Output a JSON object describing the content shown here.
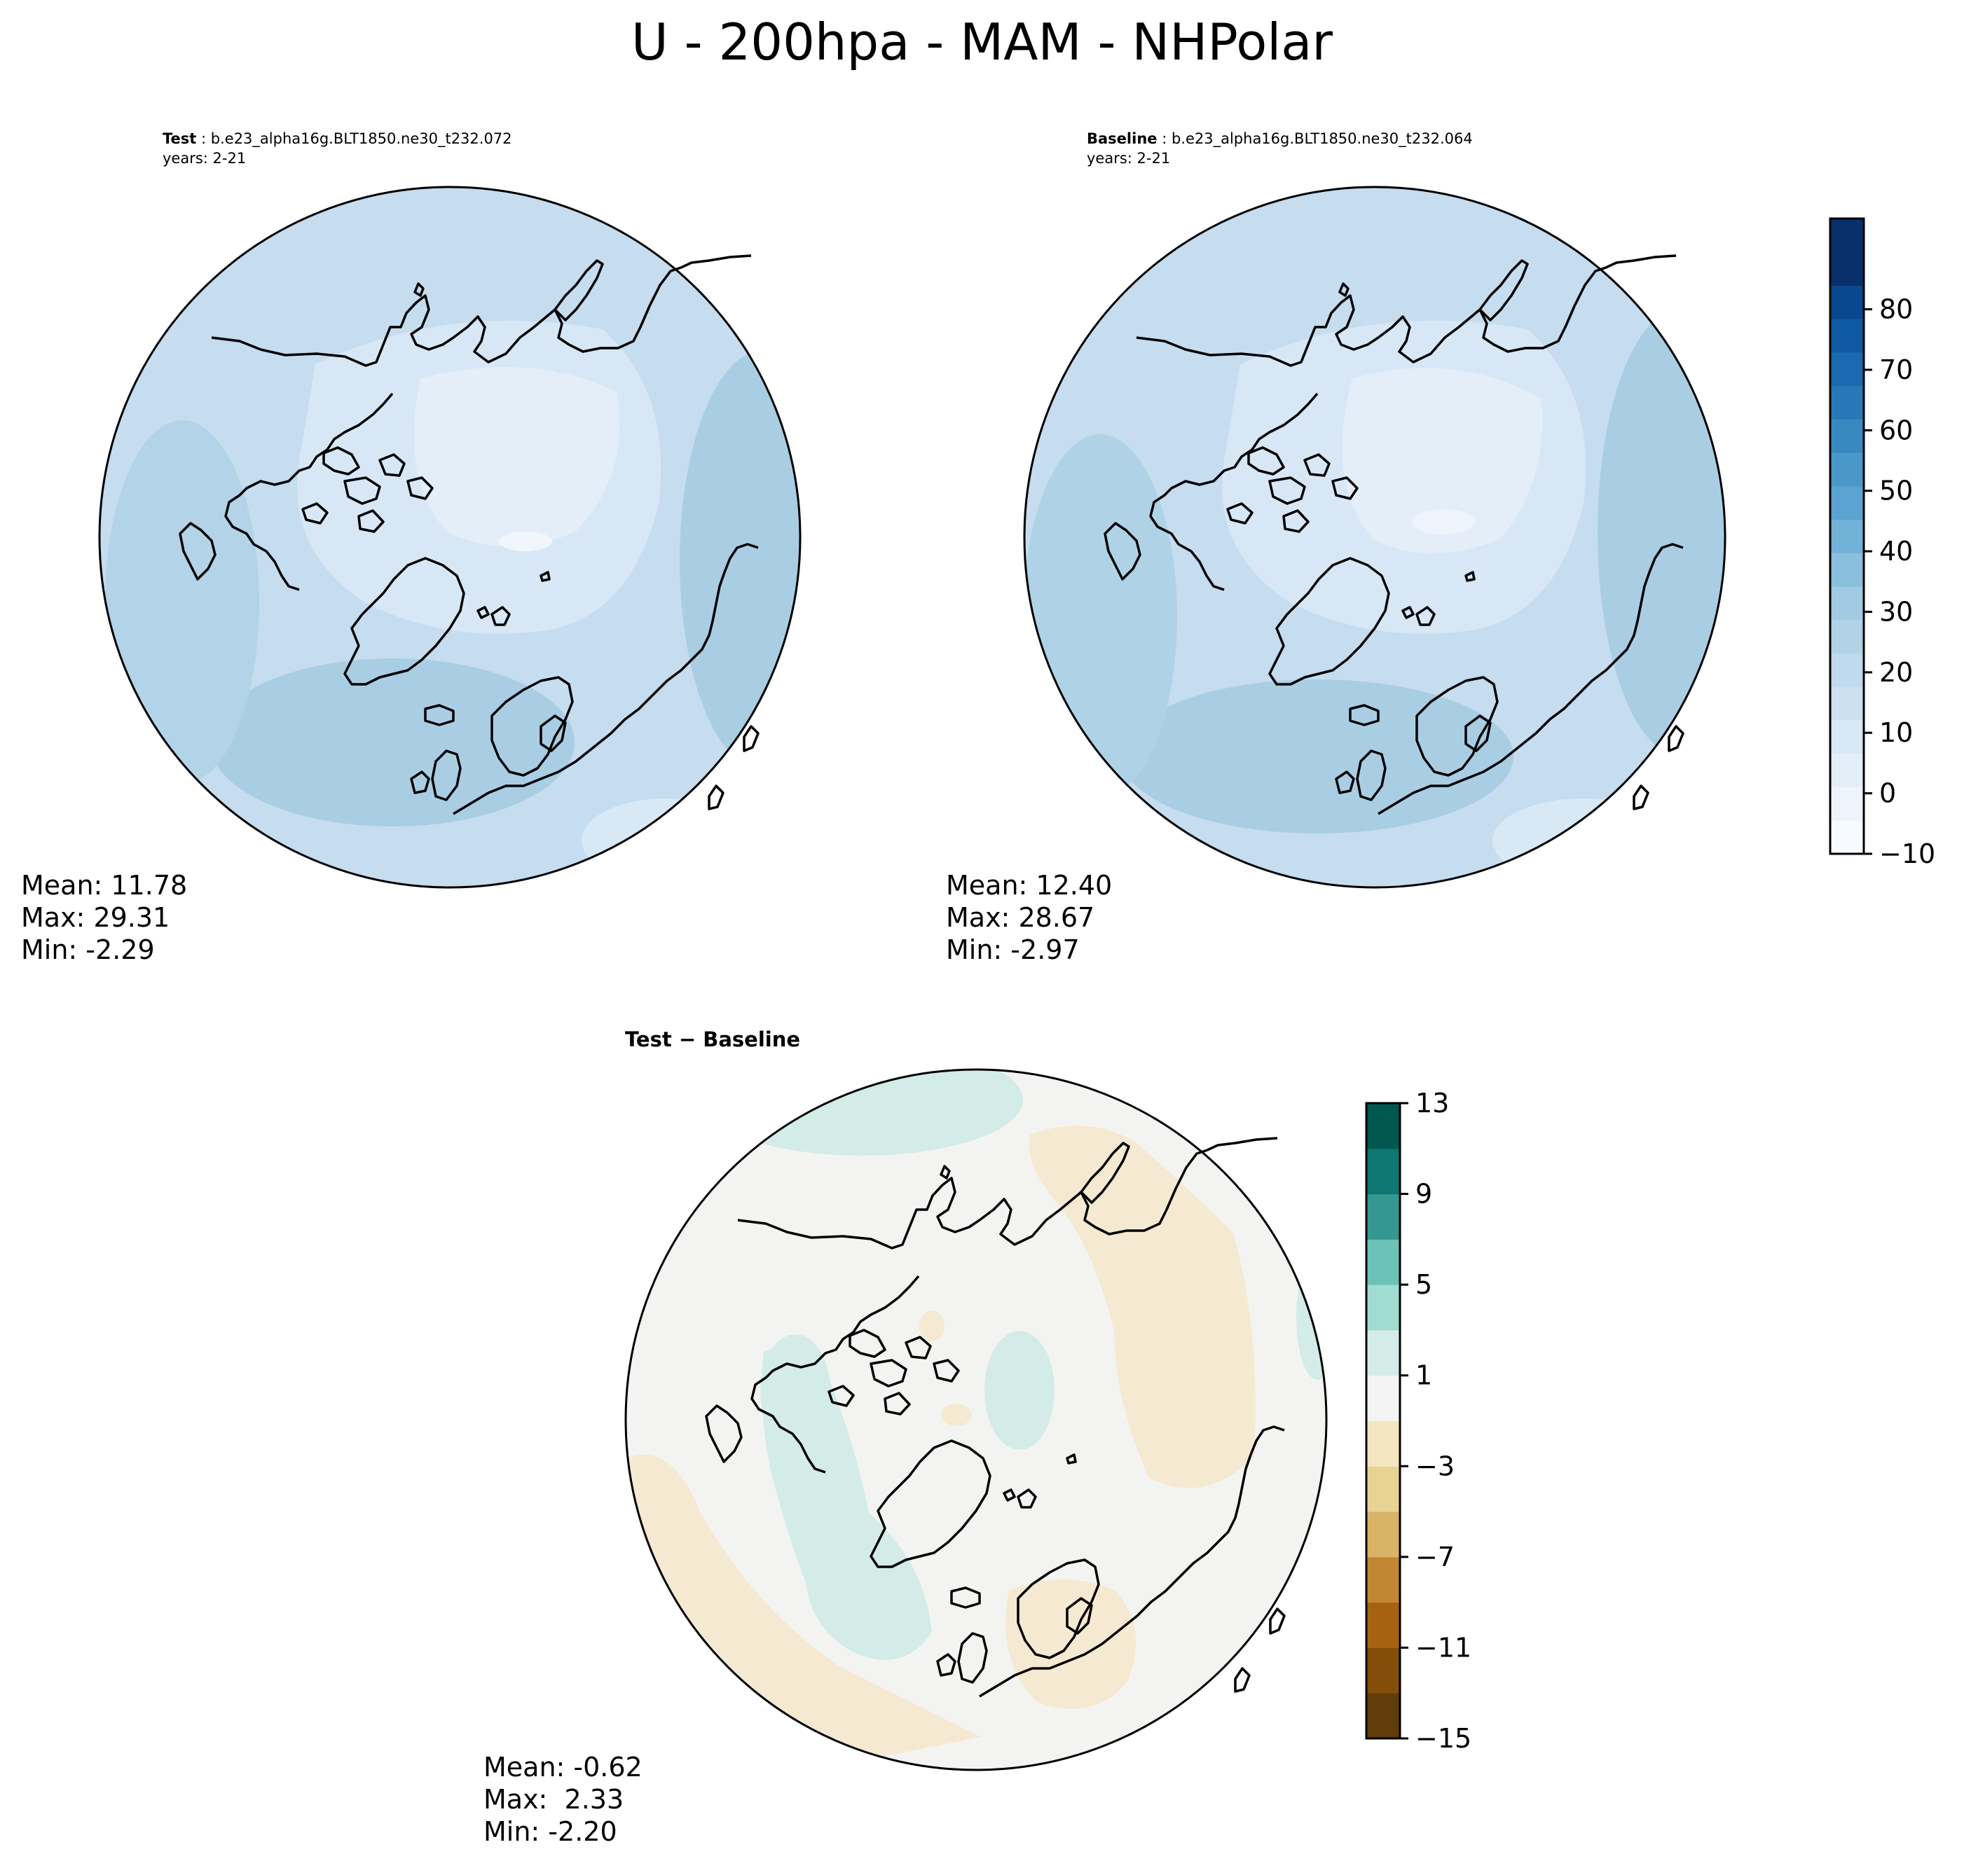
{
  "figure": {
    "title": "U - 200hpa - MAM - NHPolar"
  },
  "panels": [
    {
      "label": "Test",
      "case": "b.e23_alpha16g.BLT1850.ne30_t232.072",
      "years": "years: 2-21",
      "stats": {
        "mean": "Mean: 11.78",
        "max": "Max: 29.31",
        "min": "Min: -2.29"
      }
    },
    {
      "label": "Baseline",
      "case": "b.e23_alpha16g.BLT1850.ne30_t232.064",
      "years": "years: 2-21",
      "stats": {
        "mean": "Mean: 12.40",
        "max": "Max: 28.67",
        "min": "Min: -2.97"
      }
    },
    {
      "label": "Test − Baseline",
      "stats": {
        "mean": "Mean: -0.62",
        "max": "Max:  2.33",
        "min": "Min: -2.20"
      }
    }
  ],
  "colorbars": {
    "field": {
      "colormap": "Blues",
      "min": -10,
      "max": 85,
      "step": 5,
      "ticks": [
        "−10",
        "0",
        "10",
        "20",
        "30",
        "40",
        "50",
        "60",
        "70",
        "80"
      ],
      "colors": [
        "#f7fbff",
        "#edf4fc",
        "#e3eef9",
        "#d9e8f5",
        "#cde0f2",
        "#c1d9ed",
        "#b1d2e7",
        "#a0cbe2",
        "#8abfdd",
        "#72b2d8",
        "#5ba3d0",
        "#4a98c9",
        "#3989c1",
        "#2878b8",
        "#1b69af",
        "#0f5aa3",
        "#08488e",
        "#08306b",
        "#08306b"
      ]
    },
    "difference": {
      "colormap": "BrBG",
      "min": -15,
      "max": 13,
      "step": 2,
      "ticks": [
        "−15",
        "−11",
        "−7",
        "−3",
        "1",
        "5",
        "9",
        "13"
      ],
      "colors": [
        "#613e09",
        "#834d0a",
        "#a66210",
        "#c28733",
        "#d9b467",
        "#e8d395",
        "#f5e6c2",
        "#f4f4f4",
        "#d3ece8",
        "#a0dcd2",
        "#6cc2b6",
        "#35978f",
        "#0f7771",
        "#01584e"
      ]
    }
  }
}
